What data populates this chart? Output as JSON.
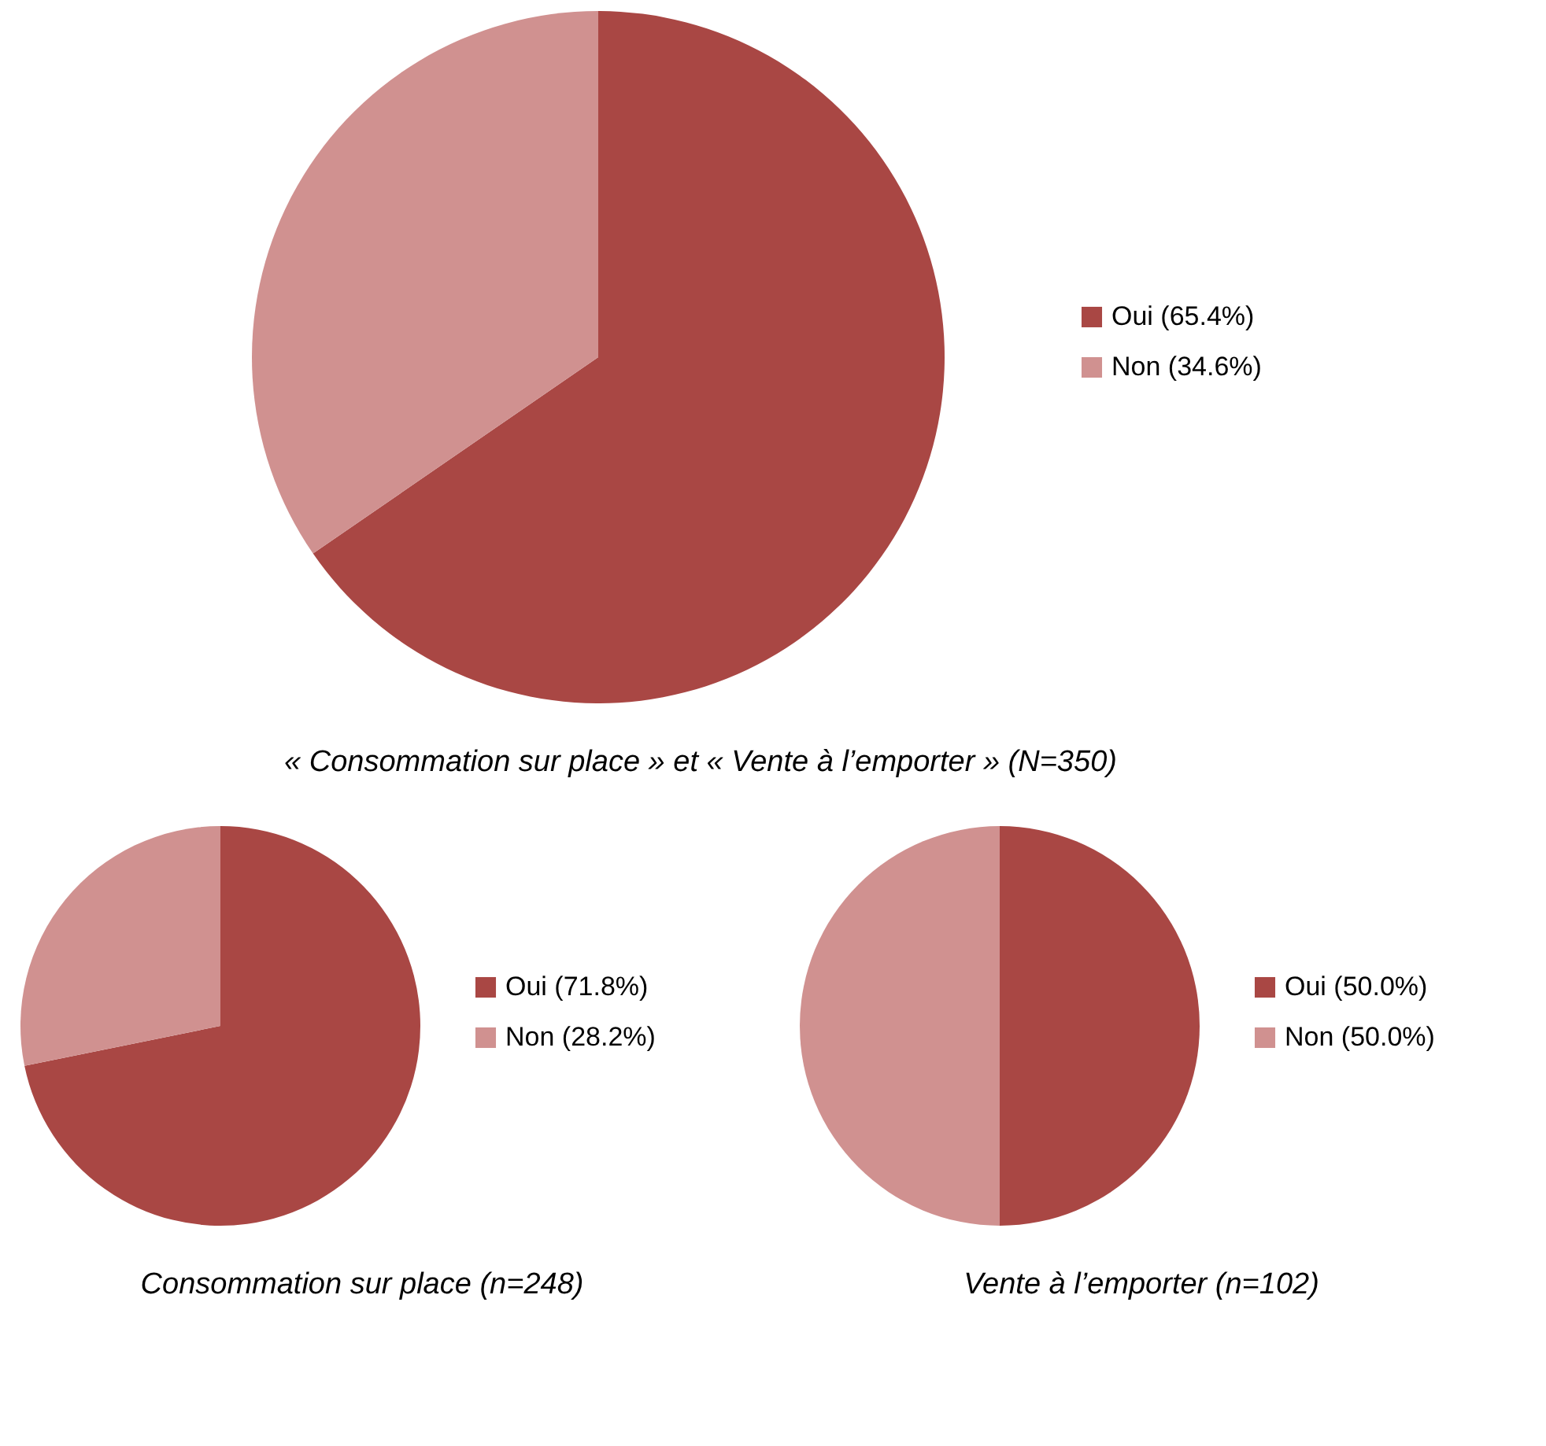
{
  "chart_data": [
    {
      "type": "pie",
      "title": "« Consommation sur place » et « Vente à l’emporter »  (N=350)",
      "categories": [
        "Oui (65.4%)",
        "Non (34.6%)"
      ],
      "values": [
        65.4,
        34.6
      ],
      "colors": [
        "#a94744",
        "#d09190"
      ],
      "legend": "right"
    },
    {
      "type": "pie",
      "title": "Consommation sur place (n=248)",
      "categories": [
        "Oui (71.8%)",
        "Non (28.2%)"
      ],
      "values": [
        71.8,
        28.2
      ],
      "colors": [
        "#a94744",
        "#d09190"
      ],
      "legend": "right"
    },
    {
      "type": "pie",
      "title": "Vente à l’emporter (n=102)",
      "categories": [
        "Oui (50.0%)",
        "Non (50.0%)"
      ],
      "values": [
        50.0,
        50.0
      ],
      "colors": [
        "#a94744",
        "#d09190"
      ],
      "legend": "right"
    }
  ]
}
